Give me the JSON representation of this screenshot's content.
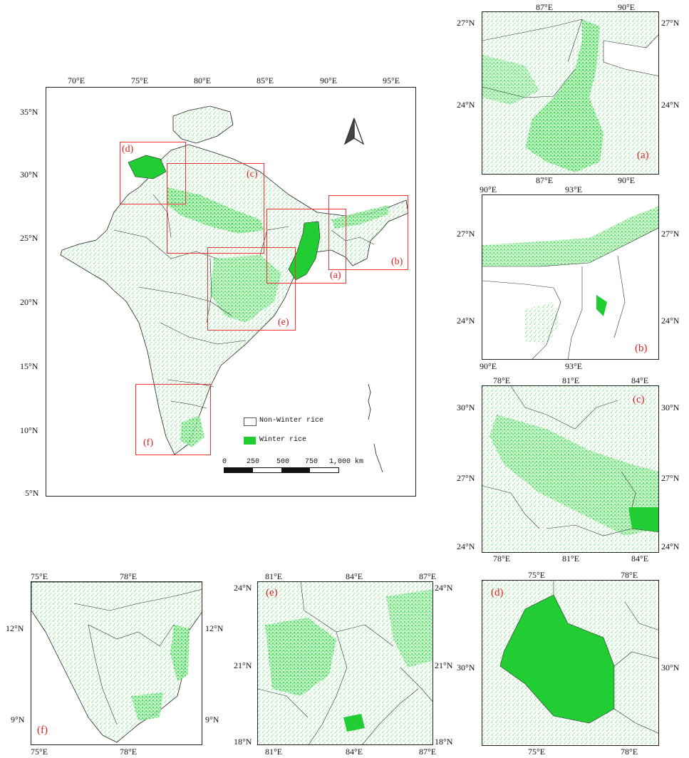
{
  "main_map": {
    "lon_ticks": [
      "70°E",
      "75°E",
      "80°E",
      "85°E",
      "90°E",
      "95°E"
    ],
    "lat_ticks": [
      "35°N",
      "30°N",
      "25°N",
      "20°N",
      "15°N",
      "10°N",
      "5°N"
    ],
    "extent_labels": [
      "(a)",
      "(b)",
      "(c)",
      "(d)",
      "(e)",
      "(f)"
    ],
    "legend": {
      "non_winter": "Non-Winter rice",
      "winter": "Winter rice",
      "winter_color": "#22cc33"
    },
    "scale_bar": {
      "labels": [
        "0",
        "250",
        "500",
        "750",
        "1,000 km"
      ]
    },
    "north_arrow": "north-arrow-icon"
  },
  "panels": {
    "a": {
      "letter": "(a)",
      "top_lon": [
        "87°E",
        "90°E"
      ],
      "bottom_lon": [
        "87°E",
        "90°E"
      ],
      "left_lat": [
        "27°N",
        "24°N"
      ],
      "right_lat": [
        "27°N",
        "24°N"
      ]
    },
    "b": {
      "letter": "(b)",
      "top_lon": [
        "90°E",
        "93°E"
      ],
      "bottom_lon": [
        "90°E",
        "93°E"
      ],
      "left_lat": [
        "27°N",
        "24°N"
      ],
      "right_lat": [
        "27°N",
        "24°N"
      ]
    },
    "c": {
      "letter": "(c)",
      "top_lon": [
        "78°E",
        "81°E",
        "84°E"
      ],
      "bottom_lon": [
        "78°E",
        "81°E",
        "84°E"
      ],
      "left_lat": [
        "30°N",
        "27°N",
        "24°N"
      ],
      "right_lat": [
        "30°N",
        "27°N",
        "24°N"
      ]
    },
    "d": {
      "letter": "(d)",
      "top_lon": [
        "75°E",
        "78°E"
      ],
      "bottom_lon": [
        "75°E",
        "78°E"
      ],
      "left_lat": [
        "30°N"
      ],
      "right_lat": [
        "30°N"
      ]
    },
    "e": {
      "letter": "(e)",
      "top_lon": [
        "81°E",
        "84°E",
        "87°E"
      ],
      "bottom_lon": [
        "81°E",
        "84°E",
        "87°E"
      ],
      "left_lat": [
        "24°N",
        "21°N",
        "18°N"
      ],
      "right_lat": [
        "24°N",
        "21°N",
        "18°N"
      ]
    },
    "f": {
      "letter": "(f)",
      "top_lon": [
        "75°E",
        "78°E"
      ],
      "bottom_lon": [
        "75°E",
        "78°E"
      ],
      "left_lat": [
        "12°N",
        "9°N"
      ],
      "right_lat": [
        "12°N",
        "9°N"
      ]
    }
  }
}
